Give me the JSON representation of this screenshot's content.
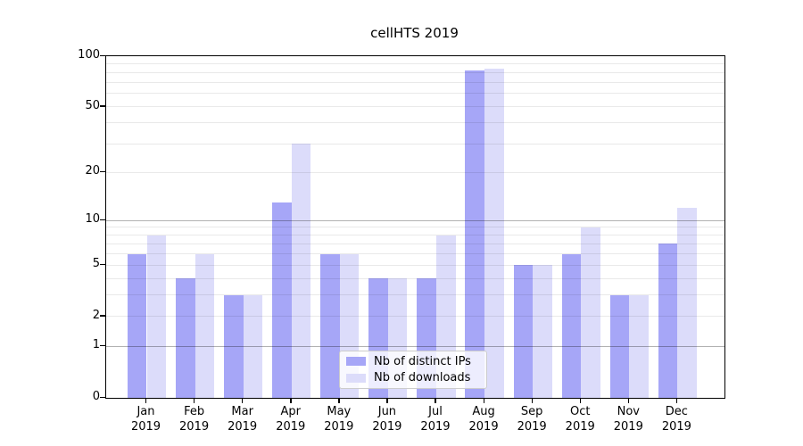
{
  "chart_data": {
    "type": "bar",
    "title": "cellHTS 2019",
    "categories": [
      "Jan",
      "Feb",
      "Mar",
      "Apr",
      "May",
      "Jun",
      "Jul",
      "Aug",
      "Sep",
      "Oct",
      "Nov",
      "Dec"
    ],
    "year_label": "2019",
    "series": [
      {
        "name": "Nb of distinct IPs",
        "color": "#a6a6f7",
        "values": [
          6,
          4,
          3,
          13,
          6,
          4,
          4,
          82,
          5,
          6,
          3,
          7
        ]
      },
      {
        "name": "Nb of downloads",
        "color": "#dcdcfa",
        "values": [
          8,
          6,
          3,
          30,
          6,
          4,
          8,
          84,
          5,
          9,
          3,
          12
        ]
      }
    ],
    "yscale": "log1p",
    "ylim": [
      0,
      100
    ],
    "y_ticks": [
      0,
      1,
      2,
      5,
      10,
      20,
      50,
      100
    ],
    "grid_minor_values": [
      2,
      3,
      4,
      5,
      6,
      7,
      8,
      9,
      20,
      30,
      40,
      50,
      60,
      70,
      80,
      90
    ],
    "grid_major_values": [
      1,
      10
    ],
    "grid": true,
    "legend_position": "lower center"
  }
}
